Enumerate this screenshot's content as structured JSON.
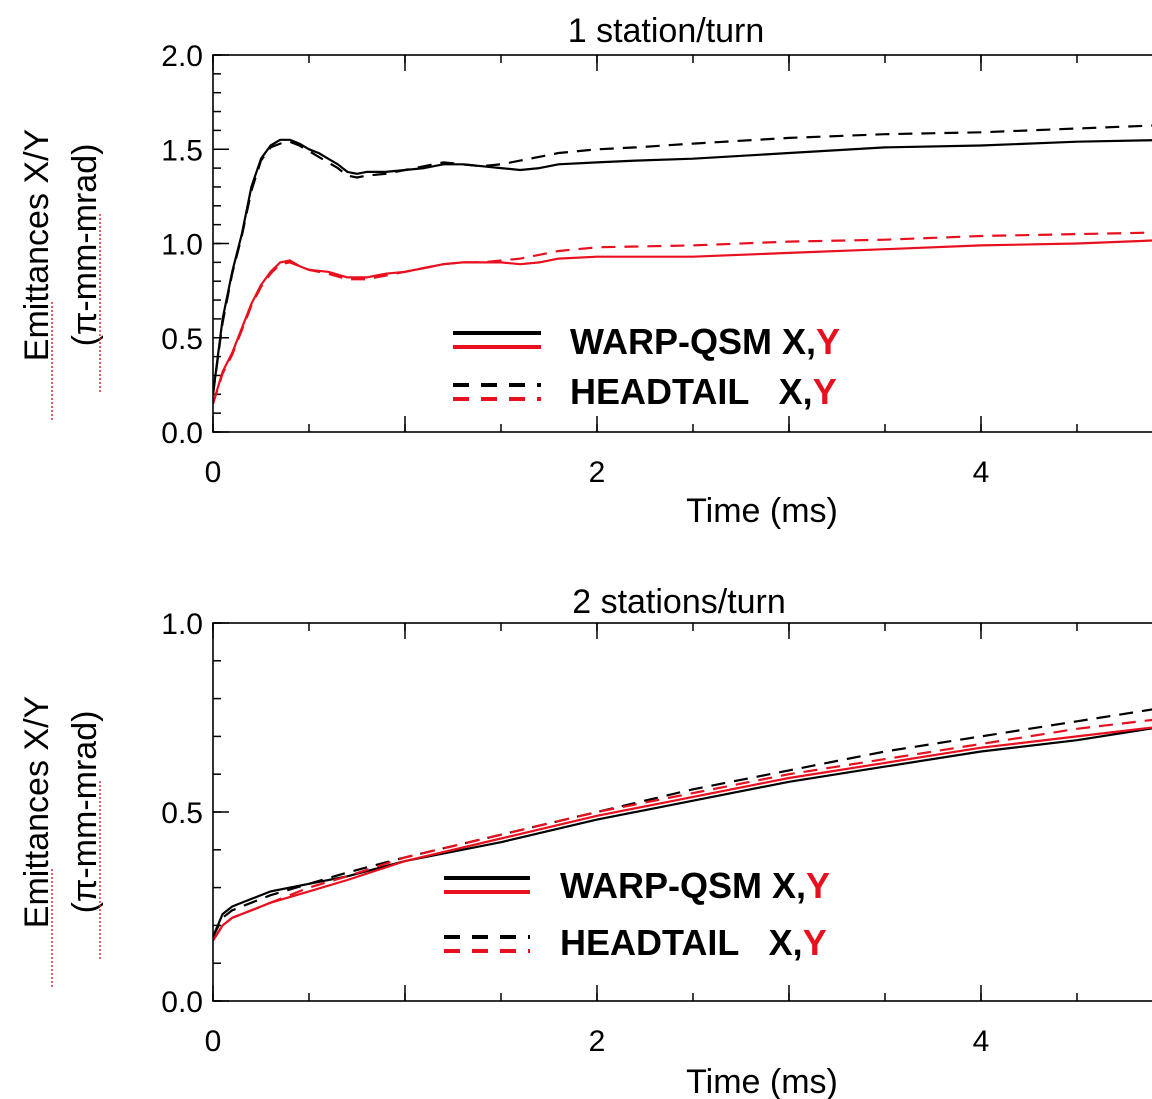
{
  "colors": {
    "x_series": "#000000",
    "y_series": "#e8101e"
  },
  "chart_data": [
    {
      "type": "line",
      "title": "1 station/turn",
      "xlabel": "Time (ms)",
      "ylabel": "Emittances X/Y",
      "ylabel2": "(π-mm-mrad)",
      "xlim": [
        0,
        5
      ],
      "ylim": [
        0.0,
        2.0
      ],
      "xticks": [
        "0",
        "2",
        "4"
      ],
      "yticks": [
        "0.0",
        "0.5",
        "1.0",
        "1.5",
        "2.0"
      ],
      "legend": {
        "entries": [
          {
            "label": "WARP-QSM X,",
            "label_y": "Y",
            "style": "solid"
          },
          {
            "label": "HEADTAIL   X,",
            "label_y": "Y",
            "style": "dashed"
          }
        ]
      },
      "series": [
        {
          "code": "WARP-QSM",
          "plane": "X",
          "color": "#000000",
          "dash": "solid",
          "x": [
            0,
            0.05,
            0.1,
            0.15,
            0.2,
            0.25,
            0.3,
            0.35,
            0.4,
            0.45,
            0.5,
            0.55,
            0.6,
            0.65,
            0.7,
            0.75,
            0.8,
            0.9,
            1.0,
            1.1,
            1.2,
            1.3,
            1.4,
            1.5,
            1.6,
            1.7,
            1.8,
            2.0,
            2.2,
            2.5,
            3.0,
            3.5,
            4.0,
            4.5,
            5.0
          ],
          "y": [
            0.2,
            0.6,
            0.85,
            1.05,
            1.3,
            1.45,
            1.52,
            1.55,
            1.55,
            1.53,
            1.5,
            1.48,
            1.45,
            1.42,
            1.38,
            1.37,
            1.38,
            1.38,
            1.39,
            1.4,
            1.42,
            1.42,
            1.41,
            1.4,
            1.39,
            1.4,
            1.42,
            1.43,
            1.44,
            1.45,
            1.48,
            1.51,
            1.52,
            1.54,
            1.55
          ]
        },
        {
          "code": "HEADTAIL",
          "plane": "X",
          "color": "#000000",
          "dash": "dashed",
          "x": [
            0,
            0.05,
            0.1,
            0.15,
            0.2,
            0.25,
            0.3,
            0.35,
            0.4,
            0.45,
            0.5,
            0.55,
            0.6,
            0.65,
            0.7,
            0.75,
            0.8,
            0.9,
            1.0,
            1.1,
            1.2,
            1.3,
            1.4,
            1.5,
            1.6,
            1.7,
            1.8,
            2.0,
            2.2,
            2.5,
            3.0,
            3.5,
            4.0,
            4.5,
            5.0
          ],
          "y": [
            0.2,
            0.58,
            0.84,
            1.04,
            1.28,
            1.44,
            1.51,
            1.53,
            1.54,
            1.52,
            1.49,
            1.46,
            1.43,
            1.4,
            1.36,
            1.35,
            1.36,
            1.37,
            1.39,
            1.41,
            1.43,
            1.42,
            1.41,
            1.42,
            1.44,
            1.46,
            1.48,
            1.5,
            1.51,
            1.53,
            1.56,
            1.58,
            1.59,
            1.61,
            1.63
          ]
        },
        {
          "code": "WARP-QSM",
          "plane": "Y",
          "color": "#e8101e",
          "dash": "solid",
          "x": [
            0,
            0.05,
            0.1,
            0.15,
            0.2,
            0.25,
            0.3,
            0.35,
            0.4,
            0.45,
            0.5,
            0.6,
            0.7,
            0.8,
            0.9,
            1.0,
            1.1,
            1.2,
            1.3,
            1.4,
            1.5,
            1.6,
            1.7,
            1.8,
            2.0,
            2.5,
            3.0,
            3.5,
            4.0,
            4.5,
            5.0
          ],
          "y": [
            0.15,
            0.32,
            0.42,
            0.55,
            0.68,
            0.78,
            0.85,
            0.9,
            0.91,
            0.88,
            0.86,
            0.85,
            0.82,
            0.82,
            0.84,
            0.85,
            0.87,
            0.89,
            0.9,
            0.9,
            0.9,
            0.89,
            0.9,
            0.92,
            0.93,
            0.93,
            0.95,
            0.97,
            0.99,
            1.0,
            1.02
          ]
        },
        {
          "code": "HEADTAIL",
          "plane": "Y",
          "color": "#e8101e",
          "dash": "dashed",
          "x": [
            0,
            0.05,
            0.1,
            0.15,
            0.2,
            0.25,
            0.3,
            0.35,
            0.4,
            0.45,
            0.5,
            0.6,
            0.7,
            0.8,
            0.9,
            1.0,
            1.1,
            1.2,
            1.3,
            1.4,
            1.5,
            1.6,
            1.7,
            1.8,
            2.0,
            2.5,
            3.0,
            3.5,
            4.0,
            4.5,
            5.0
          ],
          "y": [
            0.15,
            0.31,
            0.41,
            0.54,
            0.67,
            0.77,
            0.84,
            0.89,
            0.9,
            0.88,
            0.86,
            0.84,
            0.81,
            0.81,
            0.83,
            0.85,
            0.87,
            0.89,
            0.9,
            0.9,
            0.91,
            0.92,
            0.94,
            0.96,
            0.98,
            0.99,
            1.01,
            1.02,
            1.04,
            1.05,
            1.06
          ]
        }
      ]
    },
    {
      "type": "line",
      "title": "2 stations/turn",
      "xlabel": "Time (ms)",
      "ylabel": "Emittances X/Y",
      "ylabel2": "(π-mm-mrad)",
      "xlim": [
        0,
        5
      ],
      "ylim": [
        0.0,
        1.0
      ],
      "xticks": [
        "0",
        "2",
        "4"
      ],
      "yticks": [
        "0.0",
        "0.5",
        "1.0"
      ],
      "legend": {
        "entries": [
          {
            "label": "WARP-QSM X,",
            "label_y": "Y",
            "style": "solid"
          },
          {
            "label": "HEADTAIL   X,",
            "label_y": "Y",
            "style": "dashed"
          }
        ]
      },
      "series": [
        {
          "code": "WARP-QSM",
          "plane": "X",
          "color": "#000000",
          "dash": "solid",
          "x": [
            0,
            0.05,
            0.1,
            0.2,
            0.3,
            0.5,
            0.7,
            1.0,
            1.5,
            2.0,
            2.5,
            3.0,
            3.5,
            4.0,
            4.5,
            5.0
          ],
          "y": [
            0.17,
            0.23,
            0.25,
            0.27,
            0.29,
            0.31,
            0.33,
            0.37,
            0.42,
            0.48,
            0.53,
            0.58,
            0.62,
            0.66,
            0.69,
            0.73
          ]
        },
        {
          "code": "HEADTAIL",
          "plane": "X",
          "color": "#000000",
          "dash": "dashed",
          "x": [
            0,
            0.05,
            0.1,
            0.2,
            0.3,
            0.5,
            0.7,
            1.0,
            1.5,
            2.0,
            2.5,
            3.0,
            3.5,
            4.0,
            4.5,
            5.0
          ],
          "y": [
            0.17,
            0.22,
            0.24,
            0.26,
            0.28,
            0.31,
            0.34,
            0.38,
            0.44,
            0.5,
            0.56,
            0.61,
            0.66,
            0.7,
            0.74,
            0.78
          ]
        },
        {
          "code": "WARP-QSM",
          "plane": "Y",
          "color": "#e8101e",
          "dash": "solid",
          "x": [
            0,
            0.05,
            0.1,
            0.2,
            0.3,
            0.5,
            0.7,
            1.0,
            1.5,
            2.0,
            2.5,
            3.0,
            3.5,
            4.0,
            4.5,
            5.0
          ],
          "y": [
            0.16,
            0.2,
            0.22,
            0.24,
            0.26,
            0.29,
            0.32,
            0.37,
            0.43,
            0.49,
            0.54,
            0.59,
            0.63,
            0.67,
            0.7,
            0.73
          ]
        },
        {
          "code": "HEADTAIL",
          "plane": "Y",
          "color": "#e8101e",
          "dash": "dashed",
          "x": [
            0,
            0.05,
            0.1,
            0.2,
            0.3,
            0.5,
            0.7,
            1.0,
            1.5,
            2.0,
            2.5,
            3.0,
            3.5,
            4.0,
            4.5,
            5.0
          ],
          "y": [
            0.16,
            0.2,
            0.22,
            0.24,
            0.26,
            0.3,
            0.33,
            0.38,
            0.44,
            0.5,
            0.55,
            0.6,
            0.64,
            0.68,
            0.72,
            0.75
          ]
        }
      ]
    }
  ]
}
